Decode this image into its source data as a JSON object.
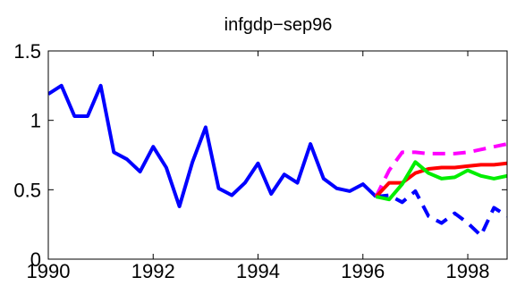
{
  "chart_data": {
    "type": "line",
    "title": "infgdp−sep96",
    "xlabel": "",
    "ylabel": "",
    "xlim": [
      1990,
      1998.75
    ],
    "ylim": [
      0,
      1.5
    ],
    "xticks": [
      1990,
      1992,
      1994,
      1996,
      1998
    ],
    "xtick_labels": [
      "1990",
      "1992",
      "1994",
      "1996",
      "1998"
    ],
    "yticks": [
      0,
      0.5,
      1,
      1.5
    ],
    "ytick_labels": [
      "0",
      "0.5",
      "1",
      "1.5"
    ],
    "grid": false,
    "series": [
      {
        "color": "#0000ff",
        "style": "solid",
        "x": [
          1990.0,
          1990.25,
          1990.5,
          1990.75,
          1991.0,
          1991.25,
          1991.5,
          1991.75,
          1992.0,
          1992.25,
          1992.5,
          1992.75,
          1993.0,
          1993.25,
          1993.5,
          1993.75,
          1994.0,
          1994.25,
          1994.5,
          1994.75,
          1995.0,
          1995.25,
          1995.5,
          1995.75,
          1996.0,
          1996.25
        ],
        "y": [
          1.19,
          1.25,
          1.03,
          1.03,
          1.25,
          0.77,
          0.72,
          0.63,
          0.81,
          0.66,
          0.38,
          0.7,
          0.95,
          0.51,
          0.46,
          0.55,
          0.69,
          0.47,
          0.61,
          0.55,
          0.83,
          0.58,
          0.51,
          0.49,
          0.54,
          0.45
        ]
      },
      {
        "color": "#0000ff",
        "style": "dashed",
        "x": [
          1996.25,
          1996.5,
          1996.75,
          1997.0,
          1997.25,
          1997.5,
          1997.75,
          1998.0,
          1998.25,
          1998.5,
          1998.75
        ],
        "y": [
          0.45,
          0.46,
          0.41,
          0.49,
          0.31,
          0.26,
          0.33,
          0.26,
          0.17,
          0.37,
          0.31
        ]
      },
      {
        "color": "#ff00ff",
        "style": "dashed",
        "x": [
          1996.25,
          1996.5,
          1996.75,
          1997.0,
          1997.25,
          1997.5,
          1997.75,
          1998.0,
          1998.25,
          1998.5,
          1998.75
        ],
        "y": [
          0.45,
          0.64,
          0.77,
          0.77,
          0.76,
          0.76,
          0.76,
          0.77,
          0.79,
          0.81,
          0.83
        ]
      },
      {
        "color": "#ff0000",
        "style": "solid",
        "x": [
          1996.25,
          1996.5,
          1996.75,
          1997.0,
          1997.25,
          1997.5,
          1997.75,
          1998.0,
          1998.25,
          1998.5,
          1998.75
        ],
        "y": [
          0.45,
          0.55,
          0.55,
          0.62,
          0.65,
          0.66,
          0.66,
          0.67,
          0.68,
          0.68,
          0.69
        ]
      },
      {
        "color": "#00ee00",
        "style": "solid",
        "x": [
          1996.25,
          1996.5,
          1996.75,
          1997.0,
          1997.25,
          1997.5,
          1997.75,
          1998.0,
          1998.25,
          1998.5,
          1998.75
        ],
        "y": [
          0.45,
          0.43,
          0.54,
          0.7,
          0.62,
          0.58,
          0.59,
          0.64,
          0.6,
          0.58,
          0.6
        ]
      }
    ]
  }
}
